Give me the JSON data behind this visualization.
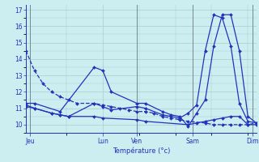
{
  "xlabel": "Température (°c)",
  "bg_color": "#cceef0",
  "line_color": "#2233bb",
  "grid_color": "#aacccc",
  "vline_color": "#778899",
  "ylim": [
    9.5,
    17.3
  ],
  "xlim": [
    0,
    27
  ],
  "yticks": [
    10,
    11,
    12,
    13,
    14,
    15,
    16,
    17
  ],
  "xtick_positions": [
    0.5,
    9,
    13,
    19.5,
    26.5
  ],
  "xtick_labels": [
    "Jeu",
    "Lun",
    "Ven",
    "Sam",
    "Dim"
  ],
  "vlines": [
    0.5,
    13,
    19.5,
    26.5
  ],
  "series": [
    {
      "x": [
        0,
        1,
        2,
        3,
        4,
        5,
        6,
        8,
        9,
        10,
        11,
        12,
        13,
        14,
        15,
        16,
        17,
        18,
        19,
        21,
        22,
        23,
        24,
        25,
        26,
        27
      ],
      "y": [
        14.5,
        13.3,
        12.5,
        12.0,
        11.7,
        11.5,
        11.3,
        11.3,
        11.2,
        11.1,
        11.0,
        10.9,
        10.8,
        10.8,
        10.7,
        10.5,
        10.4,
        10.3,
        10.2,
        10.1,
        10.0,
        10.0,
        10.0,
        10.0,
        10.0,
        10.1
      ],
      "dashed": true
    },
    {
      "x": [
        0,
        1,
        4,
        8,
        9,
        10,
        13,
        14,
        16,
        17,
        18,
        19,
        20,
        21,
        22,
        23,
        24,
        25,
        26,
        27
      ],
      "y": [
        11.3,
        11.3,
        10.8,
        13.5,
        13.3,
        12.0,
        11.3,
        11.3,
        10.8,
        10.6,
        10.5,
        9.9,
        10.7,
        11.5,
        14.8,
        16.7,
        16.7,
        14.5,
        10.5,
        10.1
      ],
      "dashed": false
    },
    {
      "x": [
        0,
        1,
        3,
        4,
        5,
        8,
        9,
        10,
        13,
        14,
        16,
        17,
        18,
        19,
        20,
        21,
        22,
        23,
        24,
        25,
        26,
        27
      ],
      "y": [
        11.2,
        11.0,
        10.7,
        10.6,
        10.5,
        11.3,
        11.1,
        10.9,
        11.1,
        11.0,
        10.6,
        10.5,
        10.4,
        10.7,
        11.2,
        14.5,
        16.7,
        16.5,
        14.8,
        11.3,
        10.2,
        10.1
      ],
      "dashed": false
    },
    {
      "x": [
        0,
        1,
        3,
        4,
        5,
        8,
        9,
        13,
        14,
        19,
        20,
        21,
        22,
        23,
        24,
        25,
        26,
        27
      ],
      "y": [
        11.1,
        11.0,
        10.7,
        10.6,
        10.5,
        10.5,
        10.4,
        10.3,
        10.2,
        10.0,
        10.1,
        10.2,
        10.3,
        10.4,
        10.5,
        10.5,
        10.0,
        10.0
      ],
      "dashed": false
    }
  ]
}
